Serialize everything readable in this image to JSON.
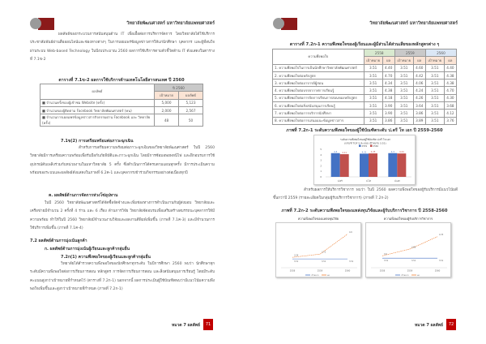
{
  "left": {
    "header_title": "วิทยาลัยพัฒนศาสตร์ มหาวิทยาลัยแพทยศาสตร์",
    "para1": "ผลลัพธ์ของกระบวนการสนับสนุนด้าน IT เพื่อเอื้อต่อการบริหารจัดการ โดยวิทยาลัยได้ใช้บริการประชาสัมพันธ์ผ่านสื่อออนไลน์และช่องทางต่างๆ ในการเผยแพร่ข้อมูลข่าวสารให้แก่นักศึกษา บุคลากร และผู้ที่สนใจผ่านระบบ Web-based Technology ในปีงบประมาณ 2560 ผลการใช้บริการตามตัวชี้วัดด้าน IT ดังแสดงในตารางที่ 7.1ข-2",
    "table1": {
      "caption": "ตารางที่ 7.1ข-2 ผลการใช้บริการด้านเทคโนโลยีสารสนเทศ ปี 2560",
      "col_header": "ผลลัพธ์",
      "year": "ปี 2560",
      "sub_target": "เป้าหมาย",
      "sub_result": "ผลลัพธ์",
      "rows": [
        {
          "label": "■ จำนวนครั้งของผู้เข้าชม Website (ครั้ง)",
          "target": "5,000",
          "result": "5,123"
        },
        {
          "label": "■ จำนวนของผู้ติดตาม Facebook วิทยาลัยพัฒนศาสตร์ (คน)",
          "target": "2,000",
          "result": "2,567"
        },
        {
          "label": "■ จำนวนการเผยแพร่ข้อมูลข่าวสารกิจกรรมผ่าน Facebook และ วิทยาลัย (ครั้ง)",
          "target": "48",
          "result": "50"
        }
      ]
    },
    "sec1_heading": "7.1ข(2) การเตรียมพร้อมต่อภาวะฉุกเฉิน",
    "sec1_para": "สำหรับการเตรียมความพร้อมต่อภาวะฉุกเฉินของวิทยาลัยพัฒนศาสตร์ ในปี 2560 วิทยาลัยมีการเตรียมความพร้อมเพื่อรับมือกับภัยพิบัติและภาวะฉุกเฉิน โดยมีการซ้อมอพยพหนีไฟ และฝึกอบรมการใช้อุปกรณ์ดับเพลิงร่วมกับหน่วยงานในมหาวิทยาลัย 5 ครั้ง ซึ่งดำเนินการได้ครบตามแผนทุกครั้ง มีการประเมินความพร้อมของระบบและผลลัพธ์ดังแสดงในภาพที่ 6.2ค-1 และบุคลากรเข้าร่วมกิจกรรมอย่างต่อเนื่องทุกปี",
    "sec2_heading": "ค. ผลลัพธ์ด้านการจัดการห่วงโซ่อุปทาน",
    "sec2_para": "ในปี 2560 วิทยาลัยพัฒนศาสตร์ได้จัดซื้อจัดจ้างและเพิ่มช่องทางการดำเนินงานกับผู้ส่งมอบ วิทยาลัยและเครือข่ายมีจำนวน 2 ครั้งที่ 4 ร่าน และ 6 เรื่อง ด้านการวิจัย วิทยาลัยจัดอบรมเพื่อเสริมสร้างสมรรถนะบุคลากรให้มีความพร้อม ทำให้ในปี 2560 วิทยาลัยมีจำนวนงานวิจัยและผลงานตีพิมพ์เพิ่มขึ้น (ภาพที่ 7.1ค-3) และมีจำนวนการใช้บริการเพิ่มขึ้น (ภาพที่ 7.1ค-4)",
    "sec3_heading": "7.2 ผลลัพธ์ด้านการมุ่งเน้นลูกค้า",
    "sec3_sub": "ก. ผลลัพธ์ด้านการมุ่งเน้นผู้เรียนและลูกค้ากลุ่มอื่น",
    "sec3_subsub": "7.2ก(1) ความพึงพอใจของผู้เรียนและลูกค้ากลุ่มอื่น",
    "sec3_para": "วิทยาลัยได้สำรวจความพึงพอใจของนักศึกษาทุกระดับ ในปีการศึกษา 2560 พบว่า นักศึกษาทุกระดับมีความพึงพอใจต่อการเรียนการสอน หลักสูตร การจัดการเรียนการสอน และสิ่งสนับสนุนการเรียนรู้ โดยมีระดับคะแนนสูงกว่าเป้าหมายที่กำหนดไว้ (ตารางที่ 7.2ก-1) นอกจากนี้ ผลการประเมินผู้ใช้บัณฑิตพบว่ามีแนวโน้มความพึงพอใจเพิ่มขึ้นและสูงกว่าเป้าหมายที่กำหนด (ภาพที่ 7.2ก-1)",
    "footer_label": "หมวด 7 ผลลัพธ์",
    "page_number": "71"
  },
  "right": {
    "header_title": "วิทยาลัยพัฒนศาสตร์ มหาวิทยาลัยแพทยศาสตร์",
    "table2": {
      "caption": "ตารางที่ 7.2ก-1 ความพึงพอใจของผู้เรียนและผู้มีส่วนได้ส่วนเสียของหลักสูตรต่าง ๆ",
      "col_header": "ความพึงพอใจ",
      "years": [
        "2558",
        "2559",
        "2560"
      ],
      "sub_target": "เป้าหมาย",
      "sub_result": "ผล",
      "rows": [
        {
          "label": "1. ความพึงพอใจในการเป็นนักศึกษาวิทยาลัยพัฒนศาสตร์",
          "values": [
            "3.51",
            "4.40",
            "3.51",
            "4.60",
            "3.51",
            "4.40"
          ]
        },
        {
          "label": "2. ความพึงพอใจต่อหลักสูตร",
          "values": [
            "3.51",
            "4.70",
            "3.51",
            "4.42",
            "3.51",
            "4.38"
          ]
        },
        {
          "label": "3. ความพึงพอใจต่ออาจารย์ผู้สอน",
          "values": [
            "3.51",
            "4.34",
            "3.51",
            "4.06",
            "3.51",
            "4.38"
          ]
        },
        {
          "label": "4. ความพึงพอใจต่อบรรยากาศการเรียนรู้",
          "values": [
            "3.51",
            "4.38",
            "3.51",
            "4.24",
            "3.51",
            "4.70"
          ]
        },
        {
          "label": "5. ความพึงพอใจต่อการจัดการเรียนการสอนของหลักสูตร",
          "values": [
            "3.51",
            "4.18",
            "3.51",
            "4.26",
            "3.51",
            "4.30"
          ]
        },
        {
          "label": "6. ความพึงพอใจต่อสิ่งสนับสนุนการเรียนรู้",
          "values": [
            "3.51",
            "3.90",
            "3.51",
            "3.64",
            "3.51",
            "3.68"
          ]
        },
        {
          "label": "7. ความพึงพอใจต่อการบริการนักศึกษา",
          "values": [
            "3.51",
            "3.90",
            "3.51",
            "3.86",
            "3.51",
            "4.12"
          ]
        },
        {
          "label": "8. ความพึงพอใจต่อการเสนอแนะข้อมูลข่าวสาร",
          "values": [
            "3.51",
            "3.86",
            "3.51",
            "3.89",
            "3.51",
            "3.76"
          ]
        }
      ]
    },
    "fig1_caption": "ภาพที่ 7.2ก-1 ระดับความพึงพอใจของผู้ใช้บัณฑิตระดับ ป.ตรี โท เอก ปี 2559-2560",
    "para": "สำหรับผลการให้บริการวิชาการ พบว่า ในปี 2560 ผลความพึงพอใจของผู้รับบริการมีแนวโน้มดีขึ้นกว่าปี 2559 (รายละเอียดในกลุ่มผู้รับบริการวิชาการ) (ภาพที่ 7.2ก-2)",
    "fig2_caption": "ภาพที่ 7.2ก-2 ระดับความพึงพอใจของแหล่งทุนวิจัยและผู้รับบริการวิชาการ ปี 2558-2560",
    "footer_label": "หมวด 7 ผลลัพธ์",
    "page_number": "72"
  },
  "chart_data": [
    {
      "type": "bar",
      "title": "ระดับความพึงพอใจของผู้ใช้บัณฑิต ป.ตรี โท เอก",
      "subtitle": "(เกณฑ์ TQF 5 คะแนน เป้าหมาย 3.51)",
      "categories": [
        "ป.ตรี",
        "ป.โท",
        "ป.เอก"
      ],
      "series": [
        {
          "name": "2559",
          "color": "#4472c4",
          "values": [
            4.3,
            4.21,
            4.3
          ]
        },
        {
          "name": "2560",
          "color": "#c0504d",
          "values": [
            4.11,
            4.25,
            4.24
          ]
        }
      ],
      "ylim": [
        0,
        5
      ],
      "yticks": [
        "0",
        "1",
        "2",
        "3",
        "4",
        "5"
      ],
      "grid": false,
      "legend": "top"
    },
    {
      "type": "line",
      "title": "ความพึงพอใจของแหล่งทุนวิจัย",
      "categories": [
        "2558",
        "2559",
        "2560"
      ],
      "series": [
        {
          "name": "เป้าหมาย",
          "color": "#4472c4",
          "dashed": false,
          "values": [
            3.51,
            3.51,
            3.51
          ]
        },
        {
          "name": "ผล",
          "color": "#ed7d31",
          "dashed": true,
          "values": [
            3.58,
            3.72,
            4.6
          ]
        }
      ],
      "ylim": [
        3.3,
        4.8
      ],
      "legend": "bottom"
    },
    {
      "type": "line",
      "title": "ความพึงพอใจของผู้รับบริการวิชาการ",
      "categories": [
        "2558",
        "2559",
        "2560"
      ],
      "series": [
        {
          "name": "เป้าหมาย",
          "color": "#4472c4",
          "dashed": false,
          "values": [
            3.51,
            3.51,
            3.51
          ]
        },
        {
          "name": "ผล",
          "color": "#ed7d31",
          "dashed": true,
          "values": [
            3.6,
            3.86,
            4.33
          ]
        }
      ],
      "ylim": [
        3.3,
        4.6
      ],
      "legend": "bottom"
    }
  ]
}
